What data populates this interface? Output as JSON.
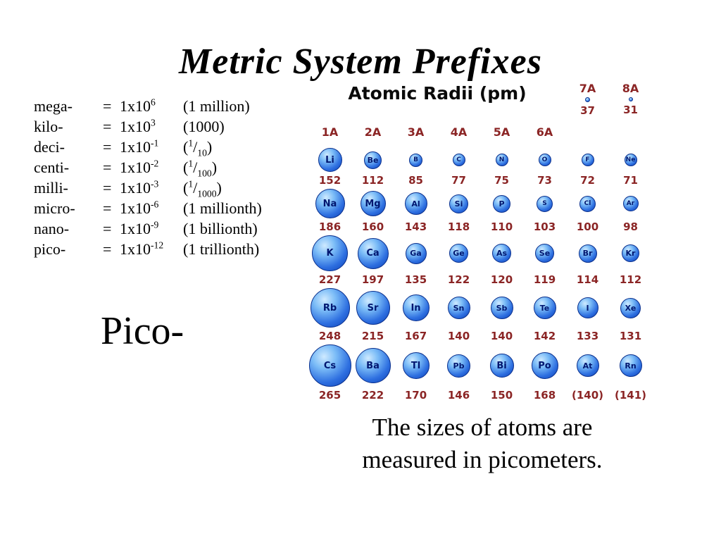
{
  "slide": {
    "title": "Metric System Prefixes",
    "pico_label": "Pico-",
    "caption": [
      "The sizes of atoms are",
      "measured in picometers."
    ]
  },
  "prefixes": {
    "equals": "=",
    "rows": [
      {
        "name": "mega-",
        "base": "1x10",
        "exp": "6",
        "note": "(1 million)"
      },
      {
        "name": "kilo-",
        "base": "1x10",
        "exp": "3",
        "note": "(1000)"
      },
      {
        "name": "deci-",
        "base": "1x10",
        "exp": "-1",
        "frac": {
          "num": "1",
          "den": "10"
        }
      },
      {
        "name": "centi-",
        "base": "1x10",
        "exp": "-2",
        "frac": {
          "num": "1",
          "den": "100"
        }
      },
      {
        "name": "milli-",
        "base": "1x10",
        "exp": "-3",
        "frac": {
          "num": "1",
          "den": "1000"
        }
      },
      {
        "name": "micro-",
        "base": "1x10",
        "exp": "-6",
        "note": "(1 millionth)"
      },
      {
        "name": "nano-",
        "base": "1x10",
        "exp": "-9",
        "note": "(1 billionth)"
      },
      {
        "name": "pico-",
        "base": "1x10",
        "exp": "-12",
        "note": "(1 trillionth)"
      }
    ]
  },
  "chart_data": {
    "type": "table",
    "title": "Atomic Radii (pm)",
    "legend_position": "none",
    "top_right": [
      {
        "group": "7A",
        "value": "37",
        "r": 37
      },
      {
        "group": "8A",
        "value": "31",
        "r": 31
      }
    ],
    "group_headers": [
      "1A",
      "2A",
      "3A",
      "4A",
      "5A",
      "6A"
    ],
    "rows": [
      [
        {
          "sym": "Li",
          "val": "152",
          "r": 152
        },
        {
          "sym": "Be",
          "val": "112",
          "r": 112
        },
        {
          "sym": "B",
          "val": "85",
          "r": 85
        },
        {
          "sym": "C",
          "val": "77",
          "r": 77
        },
        {
          "sym": "N",
          "val": "75",
          "r": 75
        },
        {
          "sym": "O",
          "val": "73",
          "r": 73
        },
        {
          "sym": "F",
          "val": "72",
          "r": 72
        },
        {
          "sym": "Ne",
          "val": "71",
          "r": 71
        }
      ],
      [
        {
          "sym": "Na",
          "val": "186",
          "r": 186
        },
        {
          "sym": "Mg",
          "val": "160",
          "r": 160
        },
        {
          "sym": "Al",
          "val": "143",
          "r": 143
        },
        {
          "sym": "Si",
          "val": "118",
          "r": 118
        },
        {
          "sym": "P",
          "val": "110",
          "r": 110
        },
        {
          "sym": "S",
          "val": "103",
          "r": 103
        },
        {
          "sym": "Cl",
          "val": "100",
          "r": 100
        },
        {
          "sym": "Ar",
          "val": "98",
          "r": 98
        }
      ],
      [
        {
          "sym": "K",
          "val": "227",
          "r": 227
        },
        {
          "sym": "Ca",
          "val": "197",
          "r": 197
        },
        {
          "sym": "Ga",
          "val": "135",
          "r": 135
        },
        {
          "sym": "Ge",
          "val": "122",
          "r": 122
        },
        {
          "sym": "As",
          "val": "120",
          "r": 120
        },
        {
          "sym": "Se",
          "val": "119",
          "r": 119
        },
        {
          "sym": "Br",
          "val": "114",
          "r": 114
        },
        {
          "sym": "Kr",
          "val": "112",
          "r": 112
        }
      ],
      [
        {
          "sym": "Rb",
          "val": "248",
          "r": 248
        },
        {
          "sym": "Sr",
          "val": "215",
          "r": 215
        },
        {
          "sym": "In",
          "val": "167",
          "r": 167
        },
        {
          "sym": "Sn",
          "val": "140",
          "r": 140
        },
        {
          "sym": "Sb",
          "val": "140",
          "r": 140
        },
        {
          "sym": "Te",
          "val": "142",
          "r": 142
        },
        {
          "sym": "I",
          "val": "133",
          "r": 133
        },
        {
          "sym": "Xe",
          "val": "131",
          "r": 131
        }
      ],
      [
        {
          "sym": "Cs",
          "val": "265",
          "r": 265
        },
        {
          "sym": "Ba",
          "val": "222",
          "r": 222
        },
        {
          "sym": "Tl",
          "val": "170",
          "r": 170
        },
        {
          "sym": "Pb",
          "val": "146",
          "r": 146
        },
        {
          "sym": "Bi",
          "val": "150",
          "r": 150
        },
        {
          "sym": "Po",
          "val": "168",
          "r": 168
        },
        {
          "sym": "At",
          "val": "(140)",
          "r": 140
        },
        {
          "sym": "Rn",
          "val": "(141)",
          "r": 141
        }
      ]
    ],
    "colors": {
      "circle_fill": "#2e6fe0",
      "symbol_text": "#001670",
      "value_text": "#8b2525",
      "header_text": "#8b2525",
      "title_text": "#0a0a0a"
    }
  }
}
